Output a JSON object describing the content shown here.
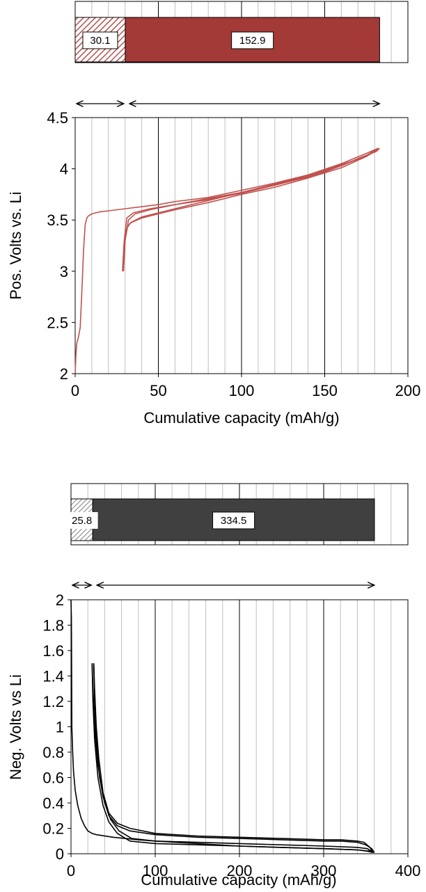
{
  "chart_data": [
    {
      "type": "bar",
      "orientation": "horizontal-stacked",
      "xlim": [
        0,
        200
      ],
      "segments": [
        {
          "label": "30.1",
          "value": 30.1,
          "color": "#ffffff",
          "pattern": "hatch",
          "hatch_color": "#b5534f"
        },
        {
          "label": "152.9",
          "value": 152.9,
          "color": "#a33a37"
        }
      ],
      "arrow_spans": [
        [
          0,
          30.1
        ],
        [
          30.1,
          183.0
        ]
      ]
    },
    {
      "type": "line",
      "xlabel": "Cumulative capacity (mAh/g)",
      "ylabel": "Pos. Volts vs. Li",
      "xlim": [
        0,
        200
      ],
      "ylim": [
        2,
        4.5
      ],
      "xticks": [
        "0",
        "50",
        "100",
        "150",
        "200"
      ],
      "yticks": [
        "2",
        "2.5",
        "3",
        "3.5",
        "4",
        "4.5"
      ],
      "grid": "vertical",
      "color": "#c0504d",
      "series": [
        {
          "x": [
            0,
            0.5,
            1,
            2,
            3,
            4,
            5,
            6,
            7,
            8,
            10,
            15,
            20,
            30,
            40,
            50,
            60,
            80,
            100,
            120,
            140,
            160,
            175,
            183
          ],
          "y": [
            2.0,
            2.2,
            2.3,
            2.36,
            2.45,
            2.8,
            3.2,
            3.45,
            3.52,
            3.54,
            3.56,
            3.58,
            3.59,
            3.61,
            3.63,
            3.65,
            3.68,
            3.72,
            3.79,
            3.86,
            3.94,
            4.04,
            4.12,
            4.2
          ]
        },
        {
          "x": [
            183,
            181,
            178,
            170,
            160,
            150,
            140,
            125,
            110,
            100,
            80,
            60,
            45,
            35,
            31,
            29.5,
            28.5
          ],
          "y": [
            4.2,
            4.17,
            4.15,
            4.1,
            4.03,
            3.97,
            3.92,
            3.86,
            3.8,
            3.76,
            3.7,
            3.65,
            3.61,
            3.57,
            3.52,
            3.3,
            3.0
          ]
        },
        {
          "x": [
            28.5,
            29.3,
            30.5,
            33,
            40,
            50,
            60,
            80,
            100,
            120,
            140,
            160,
            175,
            182
          ],
          "y": [
            3.0,
            3.25,
            3.4,
            3.47,
            3.52,
            3.56,
            3.6,
            3.67,
            3.75,
            3.82,
            3.91,
            4.01,
            4.12,
            4.2
          ]
        },
        {
          "x": [
            182,
            175,
            160,
            140,
            120,
            100,
            80,
            60,
            45,
            36,
            32,
            30,
            29
          ],
          "y": [
            4.2,
            4.15,
            4.05,
            3.94,
            3.85,
            3.77,
            3.71,
            3.65,
            3.6,
            3.56,
            3.5,
            3.3,
            3.0
          ]
        },
        {
          "x": [
            29,
            30,
            31.5,
            34,
            40,
            50,
            60,
            80,
            100,
            120,
            140,
            160,
            175,
            182
          ],
          "y": [
            3.0,
            3.3,
            3.44,
            3.48,
            3.53,
            3.57,
            3.61,
            3.69,
            3.77,
            3.84,
            3.93,
            4.03,
            4.13,
            4.2
          ]
        }
      ]
    },
    {
      "type": "bar",
      "orientation": "horizontal-stacked",
      "xlim": [
        0,
        400
      ],
      "segments": [
        {
          "label": "25.8",
          "value": 25.8,
          "color": "#ffffff",
          "pattern": "hatch",
          "hatch_color": "#7f7f7f"
        },
        {
          "label": "334.5",
          "value": 334.5,
          "color": "#404040"
        }
      ],
      "arrow_spans": [
        [
          0,
          25.8
        ],
        [
          25.8,
          360.3
        ]
      ]
    },
    {
      "type": "line",
      "xlabel": "Cumulative capacity (mAh/g)",
      "ylabel": "Neg. Volts vs Li",
      "xlim": [
        0,
        400
      ],
      "ylim": [
        0,
        2
      ],
      "xticks": [
        "0",
        "100",
        "200",
        "300",
        "400"
      ],
      "yticks": [
        "0",
        "0.2",
        "0.4",
        "0.6",
        "0.8",
        "1",
        "1.2",
        "1.4",
        "1.6",
        "1.8",
        "2"
      ],
      "grid": "vertical",
      "color": "#000000",
      "series": [
        {
          "x": [
            0,
            0.5,
            1,
            2,
            3,
            5,
            8,
            12,
            16,
            20,
            25,
            30,
            50,
            80,
            100,
            150,
            200,
            250,
            300,
            340,
            355,
            360
          ],
          "y": [
            2.0,
            1.85,
            1.0,
            0.8,
            0.65,
            0.5,
            0.38,
            0.28,
            0.22,
            0.18,
            0.16,
            0.15,
            0.13,
            0.11,
            0.1,
            0.08,
            0.06,
            0.05,
            0.04,
            0.03,
            0.02,
            0.01
          ]
        },
        {
          "x": [
            360,
            357,
            350,
            340,
            320,
            300,
            250,
            200,
            150,
            100,
            70,
            55,
            45,
            38,
            32,
            28,
            26,
            25
          ],
          "y": [
            0.01,
            0.04,
            0.07,
            0.09,
            0.1,
            0.1,
            0.11,
            0.12,
            0.13,
            0.15,
            0.18,
            0.22,
            0.3,
            0.45,
            0.7,
            1.0,
            1.3,
            1.5
          ]
        },
        {
          "x": [
            25,
            26,
            28,
            32,
            38,
            45,
            55,
            70,
            100,
            150,
            200,
            250,
            300,
            340,
            352,
            358
          ],
          "y": [
            1.5,
            1.2,
            0.9,
            0.6,
            0.38,
            0.25,
            0.16,
            0.1,
            0.08,
            0.07,
            0.06,
            0.05,
            0.04,
            0.03,
            0.02,
            0.01
          ]
        },
        {
          "x": [
            358,
            355,
            348,
            340,
            320,
            300,
            250,
            200,
            150,
            100,
            70,
            55,
            45,
            38,
            33,
            30,
            28,
            27
          ],
          "y": [
            0.01,
            0.05,
            0.09,
            0.1,
            0.11,
            0.11,
            0.12,
            0.13,
            0.14,
            0.16,
            0.2,
            0.24,
            0.32,
            0.48,
            0.75,
            1.0,
            1.3,
            1.5
          ]
        },
        {
          "x": [
            27,
            28,
            30,
            34,
            40,
            47,
            57,
            72,
            100,
            150,
            200,
            250,
            300,
            340,
            352,
            356
          ],
          "y": [
            1.5,
            1.2,
            0.9,
            0.6,
            0.4,
            0.27,
            0.18,
            0.12,
            0.1,
            0.09,
            0.08,
            0.07,
            0.06,
            0.05,
            0.04,
            0.02
          ]
        }
      ]
    }
  ]
}
